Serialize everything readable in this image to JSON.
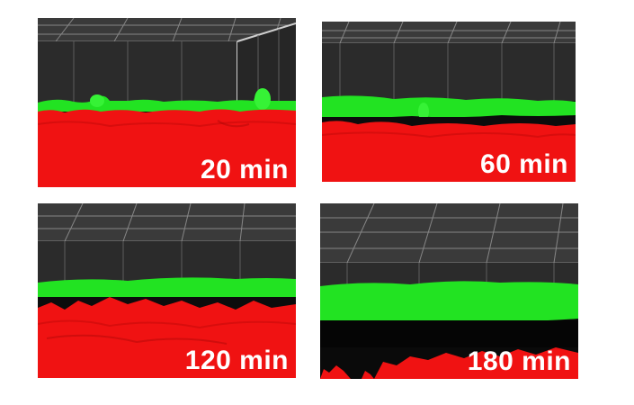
{
  "panels": [
    {
      "label": "20 min"
    },
    {
      "label": "60 min"
    },
    {
      "label": "120 min"
    },
    {
      "label": "180 min"
    }
  ],
  "colors": {
    "background": "#ffffff",
    "scene_background": "#000000",
    "grid_dark": "#2b2b2b",
    "grid_line": "#8a8a8a",
    "green_layer": "#22e322",
    "red_layer": "#f01212",
    "label_text": "#ffffff"
  }
}
